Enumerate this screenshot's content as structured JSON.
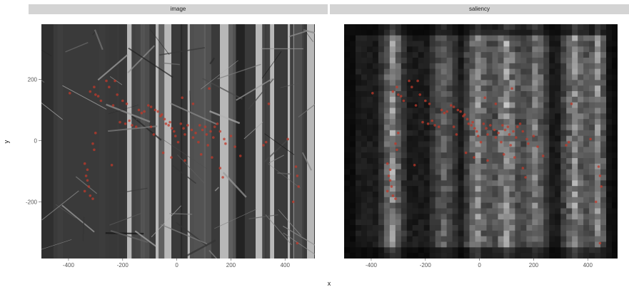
{
  "chart_data": {
    "type": "scatter",
    "panels": [
      "image",
      "saliency"
    ],
    "xlabel": "x",
    "ylabel": "y",
    "xlim": [
      -500,
      510
    ],
    "ylim": [
      -385,
      380
    ],
    "x_ticks": [
      -400,
      -200,
      0,
      200,
      400
    ],
    "y_ticks": [
      200,
      0,
      -200
    ],
    "background": "grayscale-image-tiles",
    "point_color": "#c0392b",
    "points": [
      [
        -395,
        155
      ],
      [
        -320,
        160
      ],
      [
        -305,
        175
      ],
      [
        -300,
        150
      ],
      [
        -290,
        145
      ],
      [
        -280,
        130
      ],
      [
        -260,
        195
      ],
      [
        -250,
        175
      ],
      [
        -235,
        115
      ],
      [
        -228,
        195
      ],
      [
        -220,
        150
      ],
      [
        -200,
        130
      ],
      [
        -185,
        120
      ],
      [
        -175,
        65
      ],
      [
        -165,
        50
      ],
      [
        -150,
        45
      ],
      [
        -140,
        100
      ],
      [
        -130,
        90
      ],
      [
        -120,
        95
      ],
      [
        -105,
        115
      ],
      [
        -95,
        110
      ],
      [
        -80,
        100
      ],
      [
        -70,
        95
      ],
      [
        -60,
        80
      ],
      [
        -55,
        85
      ],
      [
        -45,
        70
      ],
      [
        -40,
        55
      ],
      [
        -30,
        50
      ],
      [
        -25,
        60
      ],
      [
        -18,
        40
      ],
      [
        -10,
        30
      ],
      [
        -5,
        15
      ],
      [
        5,
        -5
      ],
      [
        15,
        55
      ],
      [
        25,
        40
      ],
      [
        30,
        20
      ],
      [
        40,
        50
      ],
      [
        55,
        35
      ],
      [
        60,
        10
      ],
      [
        70,
        25
      ],
      [
        80,
        -5
      ],
      [
        85,
        50
      ],
      [
        95,
        35
      ],
      [
        105,
        45
      ],
      [
        110,
        20
      ],
      [
        115,
        -15
      ],
      [
        125,
        30
      ],
      [
        135,
        10
      ],
      [
        140,
        45
      ],
      [
        150,
        55
      ],
      [
        160,
        30
      ],
      [
        175,
        5
      ],
      [
        180,
        -10
      ],
      [
        200,
        15
      ],
      [
        215,
        -20
      ],
      [
        235,
        -50
      ],
      [
        -340,
        -75
      ],
      [
        -330,
        -95
      ],
      [
        -335,
        -115
      ],
      [
        -330,
        -130
      ],
      [
        -325,
        -150
      ],
      [
        -340,
        -165
      ],
      [
        -320,
        -180
      ],
      [
        -310,
        -190
      ],
      [
        -300,
        25
      ],
      [
        -310,
        -10
      ],
      [
        -305,
        -30
      ],
      [
        -240,
        -80
      ],
      [
        -50,
        -40
      ],
      [
        -20,
        -55
      ],
      [
        30,
        -65
      ],
      [
        90,
        -45
      ],
      [
        130,
        -55
      ],
      [
        160,
        -90
      ],
      [
        170,
        -120
      ],
      [
        120,
        170
      ],
      [
        60,
        120
      ],
      [
        20,
        140
      ],
      [
        320,
        -15
      ],
      [
        330,
        -5
      ],
      [
        340,
        120
      ],
      [
        410,
        5
      ],
      [
        440,
        -85
      ],
      [
        445,
        -115
      ],
      [
        450,
        -150
      ],
      [
        430,
        -200
      ],
      [
        445,
        -335
      ],
      [
        -210,
        60
      ],
      [
        -190,
        55
      ],
      [
        -95,
        45
      ],
      [
        -85,
        20
      ]
    ]
  }
}
